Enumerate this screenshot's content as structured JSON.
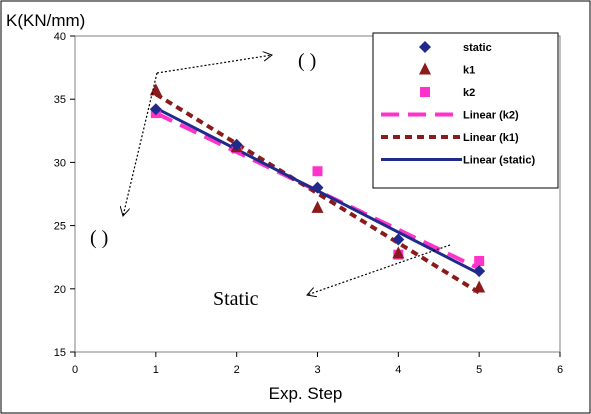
{
  "chart_data": {
    "type": "scatter",
    "ylabel": "K(KN/mm)",
    "xlabel": "Exp. Step",
    "xlim": [
      0,
      6
    ],
    "ylim": [
      15,
      40
    ],
    "x_ticks": [
      0,
      1,
      2,
      3,
      4,
      5,
      6
    ],
    "y_ticks": [
      15,
      20,
      25,
      30,
      35,
      40
    ],
    "grid": false,
    "legend_position": "top-right",
    "series": [
      {
        "name": "static",
        "marker": "diamond",
        "color": "#1f2a8c",
        "x": [
          1,
          2,
          3,
          4,
          5
        ],
        "y": [
          34.2,
          31.4,
          28.0,
          23.9,
          21.4
        ]
      },
      {
        "name": "k1",
        "marker": "triangle",
        "color": "#8b1a1a",
        "x": [
          1,
          2,
          3,
          4,
          5
        ],
        "y": [
          35.7,
          31.2,
          26.4,
          22.8,
          20.1
        ]
      },
      {
        "name": "k2",
        "marker": "square",
        "color": "#ff33cc",
        "x": [
          1,
          2,
          3,
          4,
          5
        ],
        "y": [
          33.9,
          31.1,
          29.3,
          22.7,
          22.2
        ]
      }
    ],
    "trendlines": [
      {
        "name": "Linear (k2)",
        "style": "long-dash",
        "color": "#ff33cc",
        "x": [
          1,
          5
        ],
        "y": [
          33.9,
          21.6
        ]
      },
      {
        "name": "Linear (k1)",
        "style": "short-dash",
        "color": "#8b1a1a",
        "x": [
          1,
          5
        ],
        "y": [
          35.4,
          19.7
        ]
      },
      {
        "name": "Linear (static)",
        "style": "solid",
        "color": "#1f2a8c",
        "x": [
          1,
          5
        ],
        "y": [
          34.3,
          21.2
        ]
      }
    ],
    "annotations": [
      {
        "text": "( )",
        "x": 1.85,
        "y": 38.0
      },
      {
        "text": "( )",
        "x": 0.18,
        "y": 25.2
      },
      {
        "text": "Static",
        "x": 1.75,
        "y": 20.4
      }
    ]
  }
}
